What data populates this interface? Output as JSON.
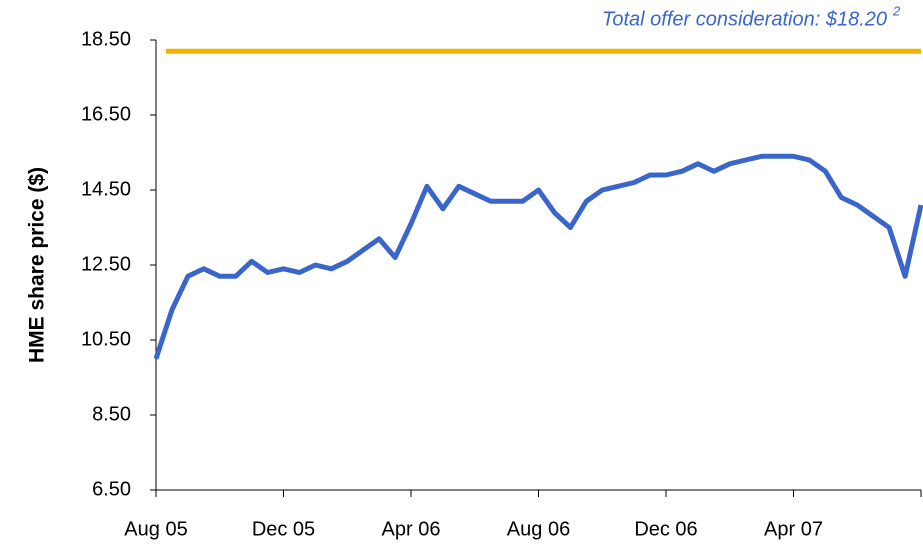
{
  "chart_data": {
    "type": "line",
    "y_label": "HME share price ($)",
    "annotation": {
      "text": "Total offer consideration: $18.20",
      "superscript": "2",
      "value": 18.2,
      "color": "#f0b400"
    },
    "categories": [
      "Aug 05",
      null,
      null,
      null,
      null,
      null,
      null,
      null,
      "Dec 05",
      null,
      null,
      null,
      null,
      null,
      null,
      null,
      "Apr 06",
      null,
      null,
      null,
      null,
      null,
      null,
      null,
      "Aug 06",
      null,
      null,
      null,
      null,
      null,
      null,
      null,
      "Dec 06",
      null,
      null,
      null,
      null,
      null,
      null,
      null,
      "Apr 07",
      null,
      null,
      null,
      null,
      null,
      null,
      null,
      null
    ],
    "series": [
      {
        "name": "HME",
        "color": "#3a66cc",
        "values": [
          10.0,
          11.3,
          12.2,
          12.4,
          12.2,
          12.2,
          12.6,
          12.3,
          12.4,
          12.3,
          12.5,
          12.4,
          12.6,
          12.9,
          13.2,
          12.7,
          13.6,
          14.6,
          14.0,
          14.6,
          14.4,
          14.2,
          14.2,
          14.2,
          14.5,
          13.9,
          13.5,
          14.2,
          14.5,
          14.6,
          14.7,
          14.9,
          14.9,
          15.0,
          15.2,
          15.0,
          15.2,
          15.3,
          15.4,
          15.4,
          15.4,
          15.3,
          15.0,
          14.3,
          14.1,
          13.8,
          13.5,
          12.2,
          14.1
        ]
      }
    ],
    "ylim": [
      6.5,
      18.5
    ],
    "yticks": [
      {
        "value": 6.5,
        "label": "6.50"
      },
      {
        "value": 8.5,
        "label": "8.50"
      },
      {
        "value": 10.5,
        "label": "10.50"
      },
      {
        "value": 12.5,
        "label": "12.50"
      },
      {
        "value": 14.5,
        "label": "14.50"
      },
      {
        "value": 16.5,
        "label": "16.50"
      },
      {
        "value": 18.5,
        "label": "18.50"
      }
    ],
    "tick_every": 8
  }
}
